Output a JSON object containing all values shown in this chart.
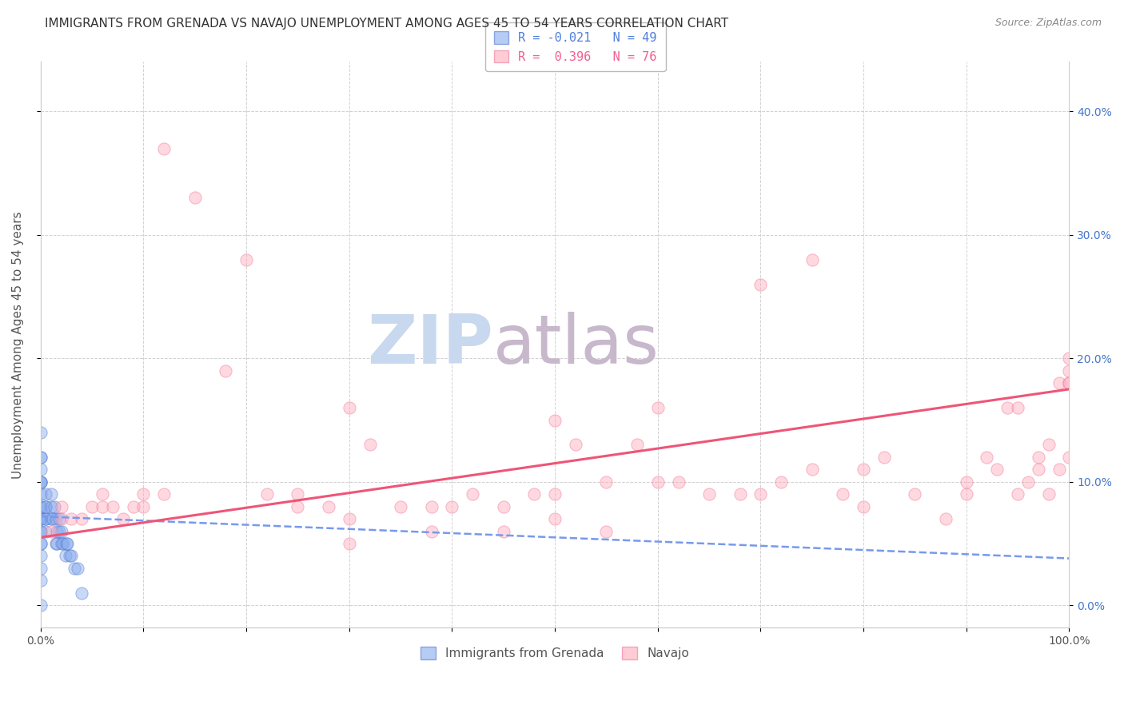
{
  "title": "IMMIGRANTS FROM GRENADA VS NAVAJO UNEMPLOYMENT AMONG AGES 45 TO 54 YEARS CORRELATION CHART",
  "source": "Source: ZipAtlas.com",
  "ylabel": "Unemployment Among Ages 45 to 54 years",
  "xlim": [
    0.0,
    1.0
  ],
  "ylim": [
    -0.018,
    0.44
  ],
  "x_ticks": [
    0.0,
    0.1,
    0.2,
    0.3,
    0.4,
    0.5,
    0.6,
    0.7,
    0.8,
    0.9,
    1.0
  ],
  "x_tick_labels": [
    "0.0%",
    "",
    "",
    "",
    "",
    "",
    "",
    "",
    "",
    "",
    "100.0%"
  ],
  "y_ticks": [
    0.0,
    0.1,
    0.2,
    0.3,
    0.4
  ],
  "y_tick_labels_left": [
    "",
    "",
    "",
    "",
    ""
  ],
  "y_tick_labels_right": [
    "0.0%",
    "10.0%",
    "20.0%",
    "30.0%",
    "40.0%"
  ],
  "legend1_label1": "R = -0.021   N = 49",
  "legend1_label2": "R =  0.396   N = 76",
  "legend1_color1": "#4f7fdb",
  "legend1_color2": "#f06090",
  "legend2_label1": "Immigrants from Grenada",
  "legend2_label2": "Navajo",
  "blue_scatter_x": [
    0.0,
    0.0,
    0.0,
    0.0,
    0.0,
    0.0,
    0.0,
    0.0,
    0.0,
    0.0,
    0.0,
    0.0,
    0.0,
    0.0,
    0.0,
    0.0,
    0.0,
    0.0,
    0.0,
    0.0,
    0.0,
    0.005,
    0.005,
    0.005,
    0.005,
    0.005,
    0.005,
    0.01,
    0.01,
    0.01,
    0.012,
    0.013,
    0.015,
    0.015,
    0.016,
    0.016,
    0.018,
    0.018,
    0.02,
    0.02,
    0.022,
    0.024,
    0.025,
    0.026,
    0.028,
    0.03,
    0.033,
    0.036,
    0.04
  ],
  "blue_scatter_y": [
    0.0,
    0.02,
    0.03,
    0.04,
    0.05,
    0.05,
    0.06,
    0.06,
    0.07,
    0.07,
    0.07,
    0.08,
    0.08,
    0.09,
    0.1,
    0.1,
    0.1,
    0.11,
    0.12,
    0.12,
    0.14,
    0.06,
    0.07,
    0.07,
    0.08,
    0.08,
    0.09,
    0.07,
    0.08,
    0.09,
    0.07,
    0.08,
    0.05,
    0.07,
    0.05,
    0.06,
    0.06,
    0.07,
    0.05,
    0.06,
    0.05,
    0.04,
    0.05,
    0.05,
    0.04,
    0.04,
    0.03,
    0.03,
    0.01
  ],
  "pink_scatter_x": [
    0.01,
    0.02,
    0.02,
    0.03,
    0.04,
    0.05,
    0.06,
    0.06,
    0.07,
    0.08,
    0.09,
    0.1,
    0.1,
    0.12,
    0.12,
    0.15,
    0.18,
    0.2,
    0.22,
    0.25,
    0.28,
    0.3,
    0.3,
    0.32,
    0.35,
    0.38,
    0.4,
    0.42,
    0.45,
    0.48,
    0.5,
    0.5,
    0.52,
    0.55,
    0.58,
    0.6,
    0.62,
    0.65,
    0.68,
    0.7,
    0.72,
    0.75,
    0.78,
    0.8,
    0.82,
    0.85,
    0.88,
    0.9,
    0.9,
    0.92,
    0.93,
    0.94,
    0.95,
    0.95,
    0.96,
    0.97,
    0.97,
    0.98,
    0.98,
    0.99,
    0.99,
    1.0,
    1.0,
    1.0,
    1.0,
    1.0,
    0.25,
    0.3,
    0.38,
    0.45,
    0.5,
    0.55,
    0.6,
    0.7,
    0.75,
    0.8
  ],
  "pink_scatter_y": [
    0.06,
    0.07,
    0.08,
    0.07,
    0.07,
    0.08,
    0.08,
    0.09,
    0.08,
    0.07,
    0.08,
    0.08,
    0.09,
    0.37,
    0.09,
    0.33,
    0.19,
    0.28,
    0.09,
    0.08,
    0.08,
    0.07,
    0.16,
    0.13,
    0.08,
    0.08,
    0.08,
    0.09,
    0.08,
    0.09,
    0.07,
    0.09,
    0.13,
    0.1,
    0.13,
    0.1,
    0.1,
    0.09,
    0.09,
    0.09,
    0.1,
    0.11,
    0.09,
    0.11,
    0.12,
    0.09,
    0.07,
    0.09,
    0.1,
    0.12,
    0.11,
    0.16,
    0.09,
    0.16,
    0.1,
    0.11,
    0.12,
    0.13,
    0.09,
    0.11,
    0.18,
    0.18,
    0.12,
    0.19,
    0.2,
    0.18,
    0.09,
    0.05,
    0.06,
    0.06,
    0.15,
    0.06,
    0.16,
    0.26,
    0.28,
    0.08
  ],
  "blue_line_x": [
    0.0,
    1.0
  ],
  "blue_line_y": [
    0.072,
    0.038
  ],
  "pink_line_x": [
    0.0,
    1.0
  ],
  "pink_line_y": [
    0.055,
    0.175
  ],
  "scatter_size": 120,
  "scatter_alpha": 0.45,
  "blue_color": "#85aaee",
  "blue_edge_color": "#5577cc",
  "pink_color": "#ffaabb",
  "pink_edge_color": "#ee7799",
  "blue_line_color": "#7799ee",
  "pink_line_color": "#ee5577",
  "watermark_zip": "ZIP",
  "watermark_atlas": "atlas",
  "watermark_color_zip": "#c8d8ee",
  "watermark_color_atlas": "#c8b8cc",
  "background_color": "#ffffff",
  "grid_color": "#cccccc",
  "title_fontsize": 11,
  "axis_label_fontsize": 11,
  "tick_fontsize": 10,
  "right_tick_color": "#4477cc"
}
